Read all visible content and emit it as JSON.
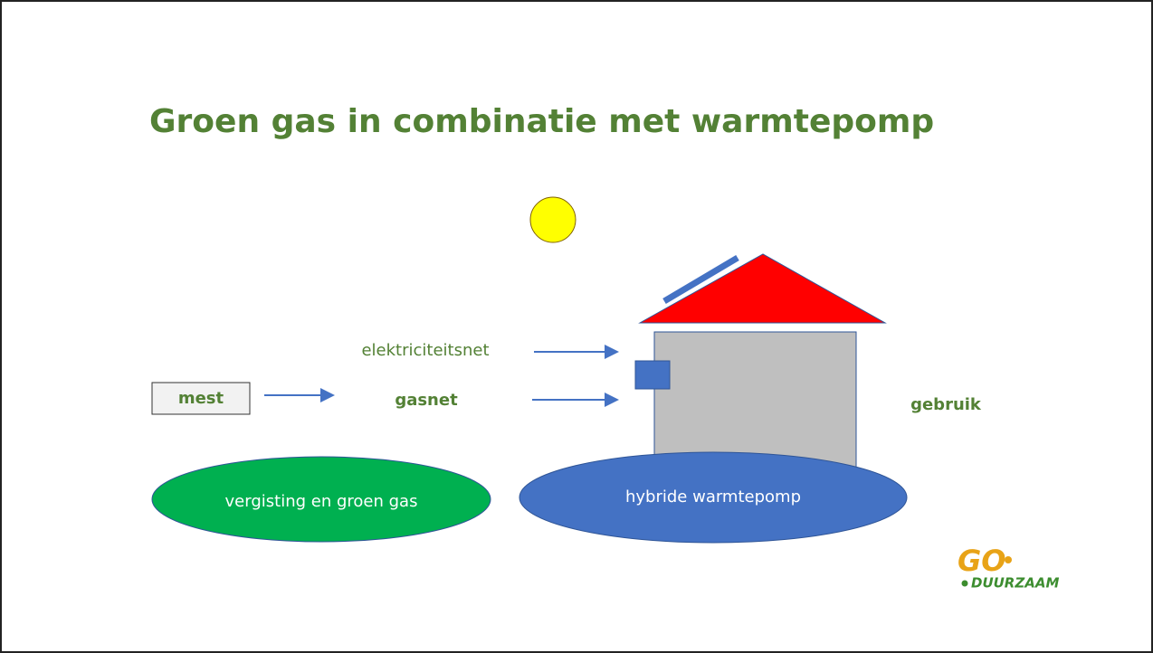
{
  "title": "Groen gas in combinatie met warmtepomp",
  "nodes": [
    {
      "label": "mest"
    },
    {
      "label": "gasnet"
    },
    {
      "label": "elektriciteitsnet"
    },
    {
      "label": "gebruik"
    },
    {
      "label": "vergisting en groen gas"
    },
    {
      "label": "hybride warmtepomp"
    }
  ],
  "logo": {
    "mark": "GO",
    "text": "DUURZAAM"
  }
}
